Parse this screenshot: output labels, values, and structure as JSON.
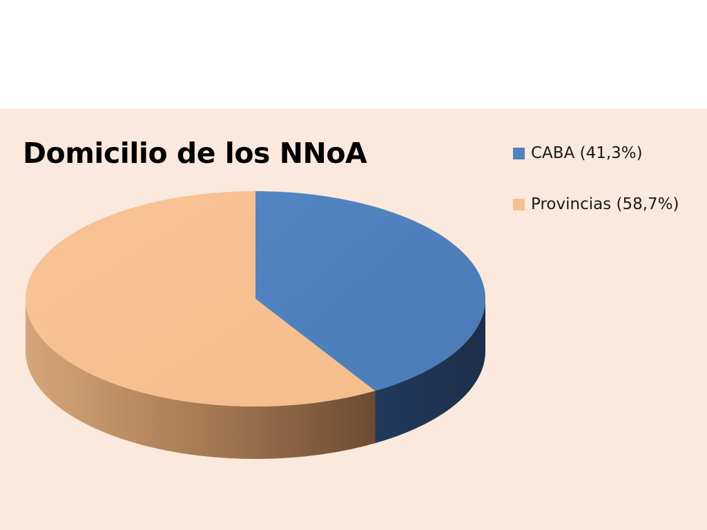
{
  "chart_data": {
    "type": "pie",
    "title": "Domicilio de los NNoA",
    "slices": [
      {
        "label": "CABA (41,3%)",
        "value": 41.3,
        "color": "#4f81bd",
        "side_color": "#1f3553"
      },
      {
        "label": "Provincias (58,7%)",
        "value": 58.7,
        "color": "#f7bf91",
        "side_color": "#a8784e"
      }
    ],
    "legend_position": "top-right",
    "style": "3d"
  }
}
